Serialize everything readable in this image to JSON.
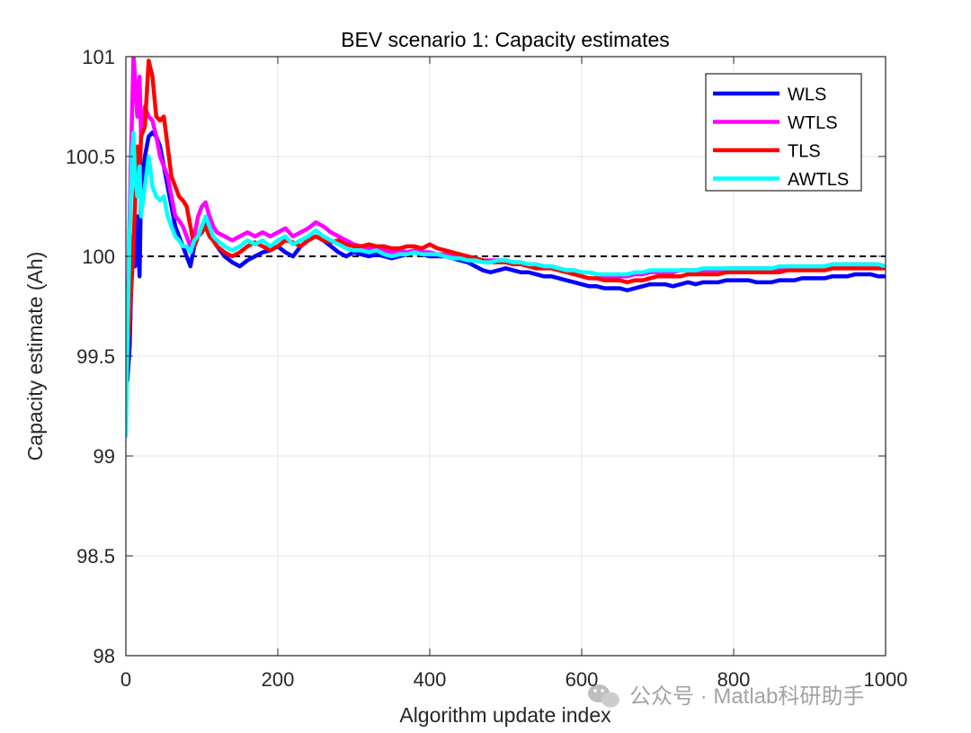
{
  "chart_data": {
    "type": "line",
    "title": "BEV scenario 1: Capacity estimates",
    "xlabel": "Algorithm update index",
    "ylabel": "Capacity estimate (Ah)",
    "xlim": [
      0,
      1000
    ],
    "ylim": [
      98,
      101
    ],
    "xticks": [
      0,
      200,
      400,
      600,
      800,
      1000
    ],
    "yticks": [
      98,
      98.5,
      99,
      99.5,
      100,
      100.5,
      101
    ],
    "xtick_labels": [
      "0",
      "200",
      "400",
      "600",
      "800",
      "1000"
    ],
    "ytick_labels": [
      "98",
      "98.5",
      "99",
      "99.5",
      "100",
      "100.5",
      "101"
    ],
    "grid": true,
    "legend_position": "top-right",
    "reference_line": {
      "y": 100,
      "style": "dashed",
      "color": "#000000"
    },
    "series": [
      {
        "name": "WLS",
        "color": "#0000ff",
        "x": [
          0,
          2,
          5,
          8,
          10,
          12,
          15,
          18,
          20,
          25,
          30,
          35,
          40,
          45,
          50,
          55,
          60,
          65,
          70,
          75,
          80,
          85,
          90,
          95,
          100,
          105,
          110,
          115,
          120,
          130,
          140,
          150,
          160,
          170,
          180,
          190,
          200,
          210,
          220,
          230,
          240,
          250,
          260,
          270,
          280,
          290,
          300,
          310,
          320,
          330,
          340,
          350,
          360,
          370,
          380,
          390,
          400,
          410,
          420,
          430,
          440,
          450,
          460,
          470,
          480,
          490,
          500,
          510,
          520,
          530,
          540,
          550,
          560,
          570,
          580,
          590,
          600,
          610,
          620,
          630,
          640,
          650,
          660,
          670,
          680,
          690,
          700,
          710,
          720,
          730,
          740,
          750,
          760,
          770,
          780,
          790,
          800,
          810,
          820,
          830,
          840,
          850,
          860,
          870,
          880,
          890,
          900,
          910,
          920,
          930,
          940,
          950,
          960,
          970,
          980,
          990,
          1000
        ],
        "values": [
          99.5,
          99.38,
          99.55,
          100.0,
          100.1,
          99.95,
          100.2,
          99.9,
          100.35,
          100.5,
          100.6,
          100.62,
          100.6,
          100.55,
          100.45,
          100.35,
          100.25,
          100.15,
          100.1,
          100.05,
          100.0,
          99.95,
          100.05,
          100.1,
          100.15,
          100.18,
          100.12,
          100.08,
          100.05,
          100.0,
          99.97,
          99.95,
          99.98,
          100.0,
          100.02,
          100.03,
          100.05,
          100.02,
          100.0,
          100.05,
          100.08,
          100.1,
          100.08,
          100.05,
          100.02,
          100.0,
          100.02,
          100.01,
          100.0,
          100.01,
          100.0,
          99.99,
          100.0,
          100.01,
          100.02,
          100.01,
          100.0,
          100.0,
          100.0,
          99.99,
          99.98,
          99.97,
          99.95,
          99.93,
          99.92,
          99.93,
          99.94,
          99.93,
          99.92,
          99.92,
          99.91,
          99.9,
          99.9,
          99.89,
          99.88,
          99.87,
          99.86,
          99.85,
          99.85,
          99.84,
          99.84,
          99.84,
          99.83,
          99.84,
          99.85,
          99.86,
          99.86,
          99.86,
          99.85,
          99.86,
          99.87,
          99.86,
          99.87,
          99.87,
          99.87,
          99.88,
          99.88,
          99.88,
          99.88,
          99.87,
          99.87,
          99.87,
          99.88,
          99.88,
          99.88,
          99.89,
          99.89,
          99.89,
          99.89,
          99.9,
          99.9,
          99.9,
          99.91,
          99.91,
          99.91,
          99.9,
          99.9
        ]
      },
      {
        "name": "WTLS",
        "color": "#ff00ff",
        "x": [
          0,
          2,
          5,
          8,
          10,
          12,
          15,
          18,
          20,
          25,
          30,
          35,
          40,
          45,
          50,
          55,
          60,
          65,
          70,
          75,
          80,
          85,
          90,
          95,
          100,
          105,
          110,
          115,
          120,
          130,
          140,
          150,
          160,
          170,
          180,
          190,
          200,
          210,
          220,
          230,
          240,
          250,
          260,
          270,
          280,
          290,
          300,
          310,
          320,
          330,
          340,
          350,
          360,
          370,
          380,
          390,
          400,
          410,
          420,
          430,
          440,
          450,
          460,
          470,
          480,
          490,
          500,
          510,
          520,
          530,
          540,
          550,
          560,
          570,
          580,
          590,
          600,
          610,
          620,
          630,
          640,
          650,
          660,
          670,
          680,
          690,
          700,
          710,
          720,
          730,
          740,
          750,
          760,
          770,
          780,
          790,
          800,
          810,
          820,
          830,
          840,
          850,
          860,
          870,
          880,
          890,
          900,
          910,
          920,
          930,
          940,
          950,
          960,
          970,
          980,
          990,
          1000
        ],
        "values": [
          99.3,
          99.6,
          100.2,
          100.7,
          101.0,
          100.9,
          100.7,
          100.9,
          100.6,
          100.75,
          100.7,
          100.68,
          100.6,
          100.5,
          100.45,
          100.4,
          100.3,
          100.2,
          100.18,
          100.15,
          100.1,
          100.05,
          100.1,
          100.2,
          100.25,
          100.27,
          100.2,
          100.15,
          100.12,
          100.1,
          100.08,
          100.1,
          100.12,
          100.1,
          100.12,
          100.1,
          100.12,
          100.14,
          100.1,
          100.12,
          100.14,
          100.17,
          100.15,
          100.12,
          100.1,
          100.08,
          100.06,
          100.05,
          100.04,
          100.05,
          100.03,
          100.02,
          100.03,
          100.02,
          100.03,
          100.02,
          100.02,
          100.01,
          100.01,
          100.0,
          99.99,
          99.99,
          99.99,
          99.98,
          99.98,
          99.98,
          99.98,
          99.97,
          99.97,
          99.96,
          99.96,
          99.95,
          99.95,
          99.94,
          99.93,
          99.93,
          99.92,
          99.92,
          99.91,
          99.9,
          99.9,
          99.9,
          99.9,
          99.91,
          99.91,
          99.92,
          99.92,
          99.92,
          99.92,
          99.93,
          99.93,
          99.93,
          99.93,
          99.93,
          99.93,
          99.94,
          99.94,
          99.94,
          99.94,
          99.94,
          99.94,
          99.94,
          99.94,
          99.95,
          99.95,
          99.95,
          99.95,
          99.95,
          99.95,
          99.96,
          99.96,
          99.96,
          99.96,
          99.96,
          99.96,
          99.96,
          99.95
        ]
      },
      {
        "name": "TLS",
        "color": "#ff0000",
        "x": [
          0,
          2,
          5,
          8,
          10,
          12,
          15,
          18,
          20,
          25,
          30,
          35,
          40,
          45,
          50,
          55,
          60,
          65,
          70,
          75,
          80,
          85,
          90,
          95,
          100,
          105,
          110,
          115,
          120,
          130,
          140,
          150,
          160,
          170,
          180,
          190,
          200,
          210,
          220,
          230,
          240,
          250,
          260,
          270,
          280,
          290,
          300,
          310,
          320,
          330,
          340,
          350,
          360,
          370,
          380,
          390,
          400,
          410,
          420,
          430,
          440,
          450,
          460,
          470,
          480,
          490,
          500,
          510,
          520,
          530,
          540,
          550,
          560,
          570,
          580,
          590,
          600,
          610,
          620,
          630,
          640,
          650,
          660,
          670,
          680,
          690,
          700,
          710,
          720,
          730,
          740,
          750,
          760,
          770,
          780,
          790,
          800,
          810,
          820,
          830,
          840,
          850,
          860,
          870,
          880,
          890,
          900,
          910,
          920,
          930,
          940,
          950,
          960,
          970,
          980,
          990,
          1000
        ],
        "values": [
          99.2,
          99.5,
          99.7,
          99.9,
          100.05,
          100.25,
          100.55,
          100.4,
          100.6,
          100.65,
          100.98,
          100.9,
          100.7,
          100.68,
          100.7,
          100.55,
          100.4,
          100.35,
          100.3,
          100.28,
          100.25,
          100.15,
          100.05,
          100.1,
          100.12,
          100.15,
          100.1,
          100.08,
          100.05,
          100.02,
          100.0,
          100.02,
          100.05,
          100.07,
          100.05,
          100.03,
          100.05,
          100.08,
          100.07,
          100.05,
          100.08,
          100.1,
          100.08,
          100.07,
          100.08,
          100.06,
          100.05,
          100.05,
          100.06,
          100.05,
          100.05,
          100.04,
          100.04,
          100.05,
          100.05,
          100.04,
          100.06,
          100.04,
          100.03,
          100.02,
          100.01,
          100.0,
          99.99,
          99.98,
          99.97,
          99.97,
          99.97,
          99.96,
          99.96,
          99.95,
          99.94,
          99.94,
          99.94,
          99.93,
          99.92,
          99.91,
          99.9,
          99.89,
          99.89,
          99.88,
          99.88,
          99.88,
          99.87,
          99.88,
          99.88,
          99.89,
          99.9,
          99.9,
          99.9,
          99.9,
          99.91,
          99.91,
          99.91,
          99.91,
          99.91,
          99.92,
          99.92,
          99.92,
          99.92,
          99.92,
          99.92,
          99.92,
          99.92,
          99.93,
          99.93,
          99.93,
          99.93,
          99.93,
          99.93,
          99.94,
          99.94,
          99.94,
          99.94,
          99.94,
          99.94,
          99.94,
          99.94
        ]
      },
      {
        "name": "AWTLS",
        "color": "#00ffff",
        "x": [
          0,
          2,
          5,
          8,
          10,
          12,
          15,
          18,
          20,
          25,
          30,
          35,
          40,
          45,
          50,
          55,
          60,
          65,
          70,
          75,
          80,
          85,
          90,
          95,
          100,
          105,
          110,
          115,
          120,
          130,
          140,
          150,
          160,
          170,
          180,
          190,
          200,
          210,
          220,
          230,
          240,
          250,
          260,
          270,
          280,
          290,
          300,
          310,
          320,
          330,
          340,
          350,
          360,
          370,
          380,
          390,
          400,
          410,
          420,
          430,
          440,
          450,
          460,
          470,
          480,
          490,
          500,
          510,
          520,
          530,
          540,
          550,
          560,
          570,
          580,
          590,
          600,
          610,
          620,
          630,
          640,
          650,
          660,
          670,
          680,
          690,
          700,
          710,
          720,
          730,
          740,
          750,
          760,
          770,
          780,
          790,
          800,
          810,
          820,
          830,
          840,
          850,
          860,
          870,
          880,
          890,
          900,
          910,
          920,
          930,
          940,
          950,
          960,
          970,
          980,
          990,
          1000
        ],
        "values": [
          99.1,
          99.6,
          100.1,
          100.5,
          100.62,
          100.4,
          100.3,
          100.45,
          100.2,
          100.35,
          100.5,
          100.35,
          100.3,
          100.28,
          100.3,
          100.2,
          100.15,
          100.1,
          100.08,
          100.05,
          100.05,
          100.02,
          100.08,
          100.1,
          100.15,
          100.2,
          100.15,
          100.1,
          100.08,
          100.05,
          100.03,
          100.05,
          100.08,
          100.06,
          100.08,
          100.05,
          100.08,
          100.1,
          100.06,
          100.08,
          100.1,
          100.13,
          100.1,
          100.08,
          100.06,
          100.04,
          100.03,
          100.03,
          100.02,
          100.03,
          100.01,
          100.0,
          100.01,
          100.01,
          100.02,
          100.01,
          100.01,
          100.01,
          100.0,
          99.99,
          99.99,
          99.98,
          99.98,
          99.97,
          99.97,
          99.98,
          99.98,
          99.97,
          99.97,
          99.96,
          99.96,
          99.95,
          99.95,
          99.94,
          99.93,
          99.93,
          99.92,
          99.92,
          99.91,
          99.91,
          99.91,
          99.91,
          99.91,
          99.92,
          99.92,
          99.93,
          99.93,
          99.93,
          99.93,
          99.93,
          99.93,
          99.93,
          99.94,
          99.94,
          99.94,
          99.94,
          99.94,
          99.94,
          99.94,
          99.94,
          99.94,
          99.94,
          99.95,
          99.95,
          99.95,
          99.95,
          99.95,
          99.95,
          99.95,
          99.96,
          99.96,
          99.96,
          99.96,
          99.96,
          99.96,
          99.96,
          99.95
        ]
      }
    ]
  },
  "watermark": {
    "text": "公众号 · Matlab科研助手",
    "icon": "wechat-icon"
  }
}
